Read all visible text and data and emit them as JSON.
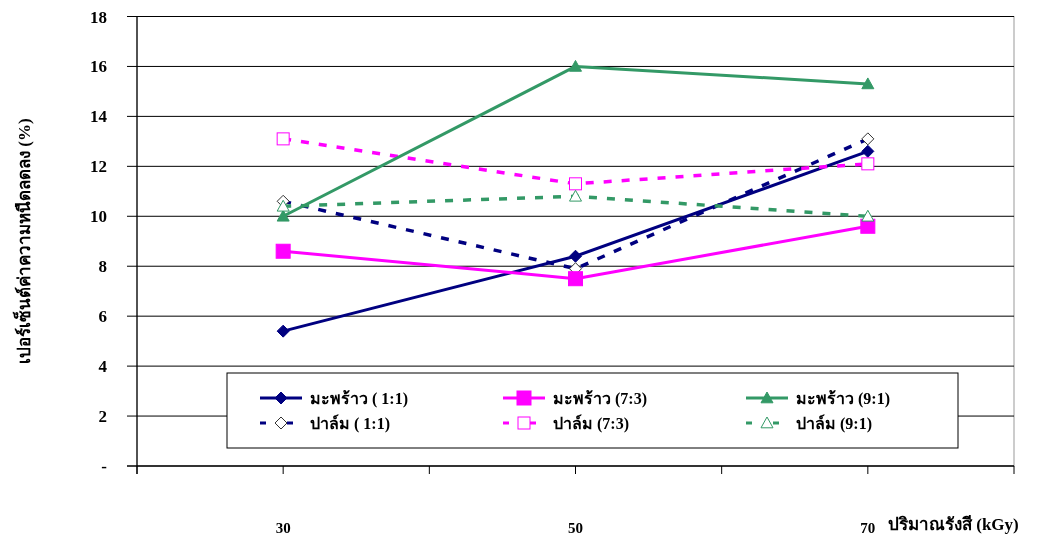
{
  "chart_data": {
    "type": "line",
    "xlabel": "ปริมาณรังสี (kGy)",
    "ylabel": "เปอร์เซ็นต์ค่าความหนืดลดลง (%)",
    "x": [
      30,
      50,
      70
    ],
    "xlim": [
      20,
      80
    ],
    "xticks": [
      {
        "value": 20,
        "label": null
      },
      30,
      {
        "value": 40,
        "label": null
      },
      50,
      {
        "value": 60,
        "label": null
      },
      70,
      {
        "value": 80,
        "label": null
      }
    ],
    "ylim": [
      0,
      18
    ],
    "yticks": [
      {
        "value": 0,
        "label": "-"
      },
      2,
      4,
      6,
      8,
      10,
      12,
      14,
      16,
      18
    ],
    "grid": "y",
    "legend": "bottom",
    "series": [
      {
        "name": "มะพร้าว ( 1:1)",
        "color": "#000080",
        "marker": "diamond",
        "line_style": "solid",
        "values": [
          5.4,
          8.4,
          12.6
        ]
      },
      {
        "name": "ปาล์ม ( 1:1)",
        "color": "#000080",
        "marker": "diamond",
        "line_style": "dashed",
        "values": [
          10.6,
          7.9,
          13.1
        ]
      },
      {
        "name": "มะพร้าว (7:3)",
        "color": "#ff00ff",
        "marker": "square",
        "line_style": "solid",
        "values": [
          8.6,
          7.5,
          9.6
        ]
      },
      {
        "name": "ปาล์ม (7:3)",
        "color": "#ff00ff",
        "marker": "square",
        "line_style": "dashed",
        "values": [
          13.1,
          11.3,
          12.1
        ]
      },
      {
        "name": "มะพร้าว (9:1)",
        "color": "#339966",
        "marker": "triangle",
        "line_style": "solid",
        "values": [
          10.0,
          16.0,
          15.3
        ]
      },
      {
        "name": "ปาล์ม (9:1)",
        "color": "#339966",
        "marker": "triangle",
        "line_style": "dashed",
        "values": [
          10.4,
          10.8,
          10.0
        ]
      }
    ]
  }
}
